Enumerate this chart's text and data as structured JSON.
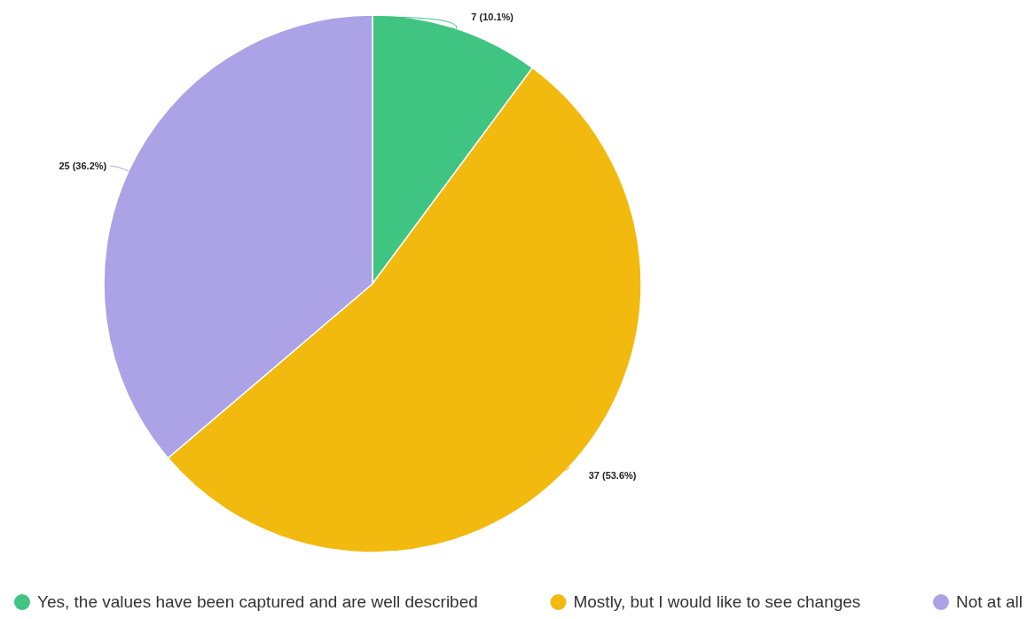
{
  "chart_data": {
    "type": "pie",
    "categories": [
      "Yes, the values have been captured and are well described",
      "Mostly, but I would like to see changes",
      "Not at all"
    ],
    "values": [
      7,
      37,
      25
    ],
    "colors": [
      "#40c482",
      "#f2b90f",
      "#aba3e6"
    ],
    "value_labels": [
      "7 (10.1%)",
      "37 (53.6%)",
      "25 (36.2%)"
    ],
    "legend": "bottom"
  }
}
